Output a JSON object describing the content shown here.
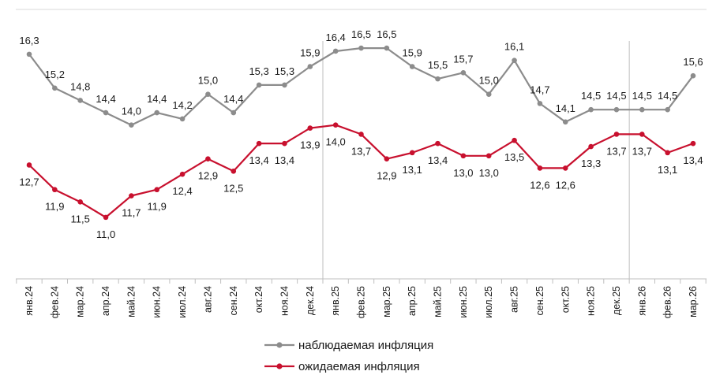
{
  "chart_data": {
    "type": "line",
    "categories": [
      "янв.24",
      "фев.24",
      "мар.24",
      "апр.24",
      "май.24",
      "июн.24",
      "июл.24",
      "авг.24",
      "сен.24",
      "окт.24",
      "ноя.24",
      "дек.24",
      "янв.25",
      "фев.25",
      "мар.25",
      "апр.25",
      "май.25",
      "июн.25",
      "июл.25",
      "авг.25",
      "сен.25",
      "окт.25",
      "ноя.25",
      "дек.25",
      "янв.26",
      "фев.26",
      "мар.26"
    ],
    "series": [
      {
        "name": "наблюдаемая инфляция",
        "color": "#8c8c8c",
        "values": [
          16.3,
          15.2,
          14.8,
          14.4,
          14.0,
          14.4,
          14.2,
          15.0,
          14.4,
          15.3,
          15.3,
          15.9,
          16.4,
          16.5,
          16.5,
          15.9,
          15.5,
          15.7,
          15.0,
          16.1,
          14.7,
          14.1,
          14.5,
          14.5,
          14.5,
          14.5,
          15.6
        ],
        "labels": [
          "16,3",
          "15,2",
          "14,8",
          "14,4",
          "14,0",
          "14,4",
          "14,2",
          "15,0",
          "14,4",
          "15,3",
          "15,3",
          "15,9",
          "16,4",
          "16,5",
          "16,5",
          "15,9",
          "15,5",
          "15,7",
          "15,0",
          "16,1",
          "14,7",
          "14,1",
          "14,5",
          "14,5",
          "14,5",
          "14,5",
          "15,6"
        ]
      },
      {
        "name": "ожидаемая инфляция",
        "color": "#c8102e",
        "values": [
          12.7,
          11.9,
          11.5,
          11.0,
          11.7,
          11.9,
          12.4,
          12.9,
          12.5,
          13.4,
          13.4,
          13.9,
          14.0,
          13.7,
          12.9,
          13.1,
          13.4,
          13.0,
          13.0,
          13.5,
          12.6,
          12.6,
          13.3,
          13.7,
          13.7,
          13.1,
          13.4
        ],
        "labels": [
          "12,7",
          "11,9",
          "11,5",
          "11,0",
          "11,7",
          "11,9",
          "12,4",
          "12,9",
          "12,5",
          "13,4",
          "13,4",
          "13,9",
          "14,0",
          "13,7",
          "12,9",
          "13,1",
          "13,4",
          "13,0",
          "13,0",
          "13,5",
          "12,6",
          "12,6",
          "13,3",
          "13,7",
          "13,7",
          "13,1",
          "13,4"
        ]
      }
    ],
    "ylim": [
      9.0,
      17.5
    ],
    "grid": false,
    "separators_before": [
      "янв.25",
      "янв.26"
    ],
    "legend_position": "bottom-center"
  }
}
